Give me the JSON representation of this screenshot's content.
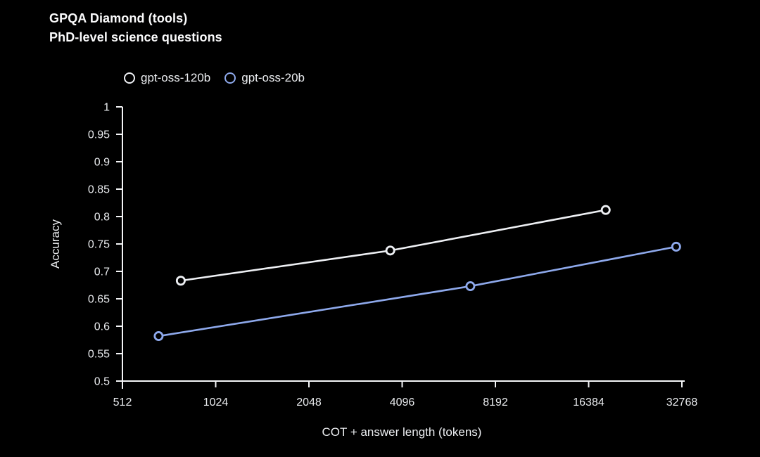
{
  "page": {
    "background": "#000000"
  },
  "header": {
    "title": "GPQA Diamond (tools)",
    "subtitle": "PhD-level science questions"
  },
  "chart_data": {
    "type": "line",
    "title": "GPQA Diamond (tools)",
    "subtitle": "PhD-level science questions",
    "xlabel": "COT + answer length (tokens)",
    "ylabel": "Accuracy",
    "x_scale": "log2",
    "xlim": [
      512,
      32768
    ],
    "ylim": [
      0.5,
      1
    ],
    "grid": false,
    "legend_position": "top-left",
    "axis_color": "#f4f5f7",
    "tick_label_color": "#e9ebee",
    "x_ticks": {
      "values": [
        512,
        1024,
        2048,
        4096,
        8192,
        16384,
        32768
      ],
      "labels": [
        "512",
        "1024",
        "2048",
        "4096",
        "8192",
        "16384",
        "32768"
      ]
    },
    "y_ticks": {
      "values": [
        0.5,
        0.55,
        0.6,
        0.65,
        0.7,
        0.75,
        0.8,
        0.85,
        0.9,
        0.95,
        1
      ],
      "labels": [
        "0.5",
        "0.55",
        "0.6",
        "0.65",
        "0.7",
        "0.75",
        "0.8",
        "0.85",
        "0.9",
        "0.95",
        "1"
      ]
    },
    "series": [
      {
        "name": "gpt-oss-120b",
        "color": "#eef0f4",
        "marker": "open-circle",
        "points": [
          [
            790,
            0.683
          ],
          [
            3750,
            0.738
          ],
          [
            18600,
            0.812
          ]
        ]
      },
      {
        "name": "gpt-oss-20b",
        "color": "#8ea9ec",
        "marker": "open-circle",
        "points": [
          [
            670,
            0.582
          ],
          [
            6800,
            0.673
          ],
          [
            31400,
            0.745
          ]
        ]
      }
    ]
  }
}
